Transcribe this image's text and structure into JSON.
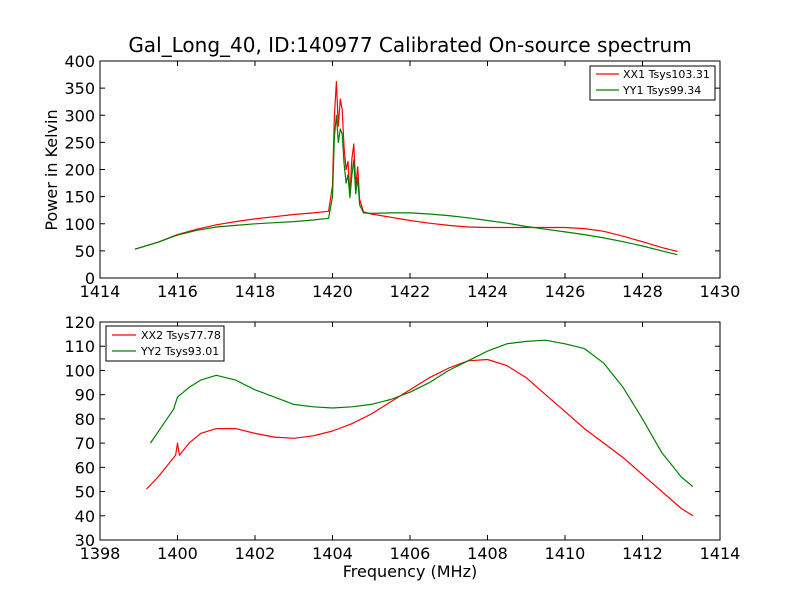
{
  "chart_data": [
    {
      "type": "line",
      "title": "Gal_Long_40, ID:140977 Calibrated On-source spectrum",
      "xlabel": "",
      "ylabel": "Power in Kelvin",
      "xlim": [
        1414,
        1430
      ],
      "ylim": [
        0,
        400
      ],
      "xticks": [
        1414,
        1416,
        1418,
        1420,
        1422,
        1424,
        1426,
        1428,
        1430
      ],
      "yticks": [
        0,
        50,
        100,
        150,
        200,
        250,
        300,
        350,
        400
      ],
      "legend_position": "upper-right",
      "series": [
        {
          "name": "XX1 Tsys103.31",
          "color": "#ff0000",
          "x": [
            1414.9,
            1415.5,
            1416.0,
            1416.5,
            1417.0,
            1417.5,
            1418.0,
            1418.5,
            1419.0,
            1419.5,
            1419.9,
            1420.0,
            1420.05,
            1420.1,
            1420.15,
            1420.2,
            1420.25,
            1420.3,
            1420.35,
            1420.4,
            1420.45,
            1420.5,
            1420.55,
            1420.6,
            1420.65,
            1420.7,
            1420.8,
            1421.0,
            1421.5,
            1422.0,
            1422.5,
            1423.0,
            1423.5,
            1424.0,
            1424.5,
            1425.0,
            1425.5,
            1426.0,
            1426.5,
            1427.0,
            1427.5,
            1428.0,
            1428.5,
            1428.9
          ],
          "values": [
            53,
            66,
            80,
            90,
            98,
            104,
            109,
            113,
            117,
            120,
            123,
            170,
            300,
            362,
            280,
            330,
            310,
            240,
            200,
            215,
            155,
            220,
            247,
            170,
            205,
            145,
            122,
            118,
            112,
            106,
            101,
            97,
            94,
            93,
            93,
            93,
            93,
            93,
            91,
            86,
            77,
            67,
            56,
            49
          ]
        },
        {
          "name": "YY1 Tsys99.34",
          "color": "#008000",
          "x": [
            1414.9,
            1415.5,
            1416.0,
            1416.5,
            1417.0,
            1417.5,
            1418.0,
            1418.5,
            1419.0,
            1419.5,
            1419.9,
            1420.0,
            1420.05,
            1420.1,
            1420.15,
            1420.2,
            1420.25,
            1420.3,
            1420.35,
            1420.4,
            1420.45,
            1420.5,
            1420.55,
            1420.6,
            1420.65,
            1420.7,
            1420.8,
            1421.0,
            1421.5,
            1422.0,
            1422.5,
            1423.0,
            1423.5,
            1424.0,
            1424.5,
            1425.0,
            1425.5,
            1426.0,
            1426.5,
            1427.0,
            1427.5,
            1428.0,
            1428.5,
            1428.9
          ],
          "values": [
            53,
            66,
            79,
            88,
            94,
            97,
            100,
            102,
            104,
            107,
            110,
            150,
            260,
            300,
            250,
            275,
            265,
            210,
            175,
            190,
            148,
            190,
            218,
            155,
            185,
            135,
            120,
            119,
            120,
            120,
            118,
            115,
            111,
            106,
            101,
            95,
            90,
            85,
            80,
            74,
            67,
            59,
            50,
            43
          ]
        }
      ]
    },
    {
      "type": "line",
      "title": "",
      "xlabel": "Frequency (MHz)",
      "ylabel": "",
      "xlim": [
        1398,
        1414
      ],
      "ylim": [
        30,
        120
      ],
      "xticks": [
        1398,
        1400,
        1402,
        1404,
        1406,
        1408,
        1410,
        1412,
        1414
      ],
      "yticks": [
        30,
        40,
        50,
        60,
        70,
        80,
        90,
        100,
        110,
        120
      ],
      "legend_position": "upper-left",
      "series": [
        {
          "name": "XX2 Tsys77.78",
          "color": "#ff0000",
          "x": [
            1399.2,
            1399.5,
            1399.8,
            1399.95,
            1400.0,
            1400.05,
            1400.3,
            1400.6,
            1401.0,
            1401.5,
            1402.0,
            1402.5,
            1403.0,
            1403.5,
            1404.0,
            1404.5,
            1405.0,
            1405.5,
            1406.0,
            1406.5,
            1407.0,
            1407.5,
            1408.0,
            1408.5,
            1409.0,
            1409.5,
            1410.0,
            1410.5,
            1411.0,
            1411.5,
            1412.0,
            1412.5,
            1413.0,
            1413.3
          ],
          "values": [
            51,
            56,
            62,
            65,
            70,
            65,
            70,
            74,
            76,
            76,
            74,
            72.5,
            72,
            73,
            75,
            78,
            82,
            87,
            92,
            97,
            101,
            104,
            104.5,
            102,
            97,
            90,
            83,
            76,
            70,
            64,
            57,
            50,
            43,
            40
          ]
        },
        {
          "name": "YY2 Tsys93.01",
          "color": "#008000",
          "x": [
            1399.3,
            1399.6,
            1399.9,
            1400.0,
            1400.3,
            1400.6,
            1401.0,
            1401.5,
            1402.0,
            1402.5,
            1403.0,
            1403.5,
            1404.0,
            1404.5,
            1405.0,
            1405.5,
            1406.0,
            1406.5,
            1407.0,
            1407.5,
            1408.0,
            1408.5,
            1409.0,
            1409.5,
            1410.0,
            1410.5,
            1411.0,
            1411.5,
            1412.0,
            1412.5,
            1413.0,
            1413.3
          ],
          "values": [
            70,
            77,
            84,
            89,
            93,
            96,
            98,
            96,
            92,
            89,
            86,
            85,
            84.5,
            85,
            86,
            88,
            91,
            95,
            100,
            104,
            108,
            111,
            112,
            112.5,
            111,
            109,
            103,
            93,
            80,
            66,
            56,
            52
          ]
        }
      ]
    }
  ]
}
